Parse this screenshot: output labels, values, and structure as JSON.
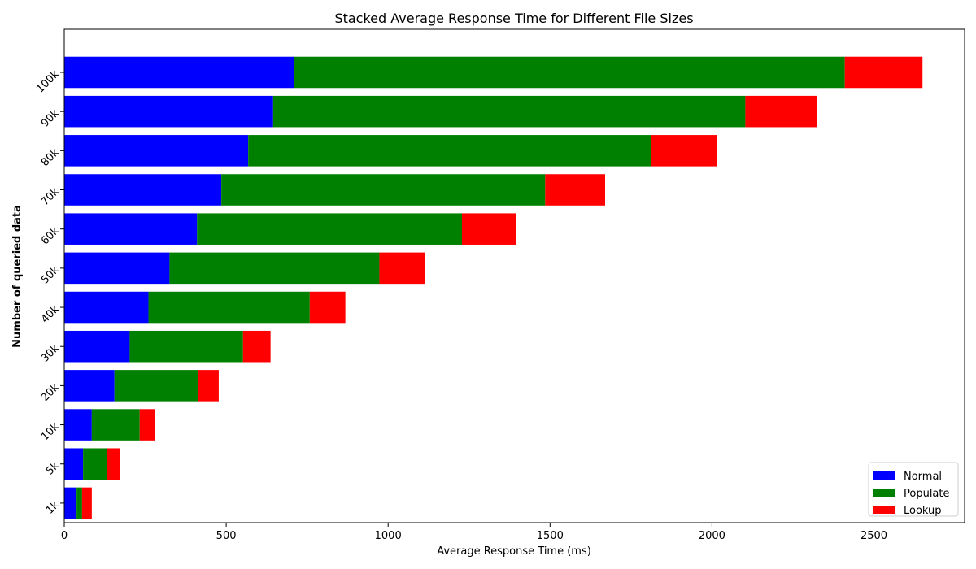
{
  "chart_data": {
    "type": "bar",
    "orientation": "horizontal",
    "stacked": true,
    "title": "Stacked Average Response Time for Different File Sizes",
    "xlabel": "Average Response Time (ms)",
    "ylabel": "Number of queried data",
    "categories": [
      "1k",
      "5k",
      "10k",
      "20k",
      "30k",
      "40k",
      "50k",
      "60k",
      "70k",
      "80k",
      "90k",
      "100k"
    ],
    "series": [
      {
        "name": "Normal",
        "color": "#0000ff",
        "values": [
          38,
          58,
          85,
          155,
          202,
          260,
          325,
          410,
          485,
          568,
          645,
          710
        ]
      },
      {
        "name": "Populate",
        "color": "#008000",
        "values": [
          17,
          75,
          148,
          257,
          350,
          498,
          648,
          818,
          1000,
          1245,
          1458,
          1700
        ]
      },
      {
        "name": "Lookup",
        "color": "#ff0000",
        "values": [
          30,
          38,
          48,
          65,
          85,
          110,
          140,
          168,
          185,
          202,
          222,
          240
        ]
      }
    ],
    "xlim": [
      0,
      2780
    ],
    "xticks": [
      0,
      500,
      1000,
      1500,
      2000,
      2500
    ],
    "grid": false,
    "legend_position": "bottom-right"
  }
}
